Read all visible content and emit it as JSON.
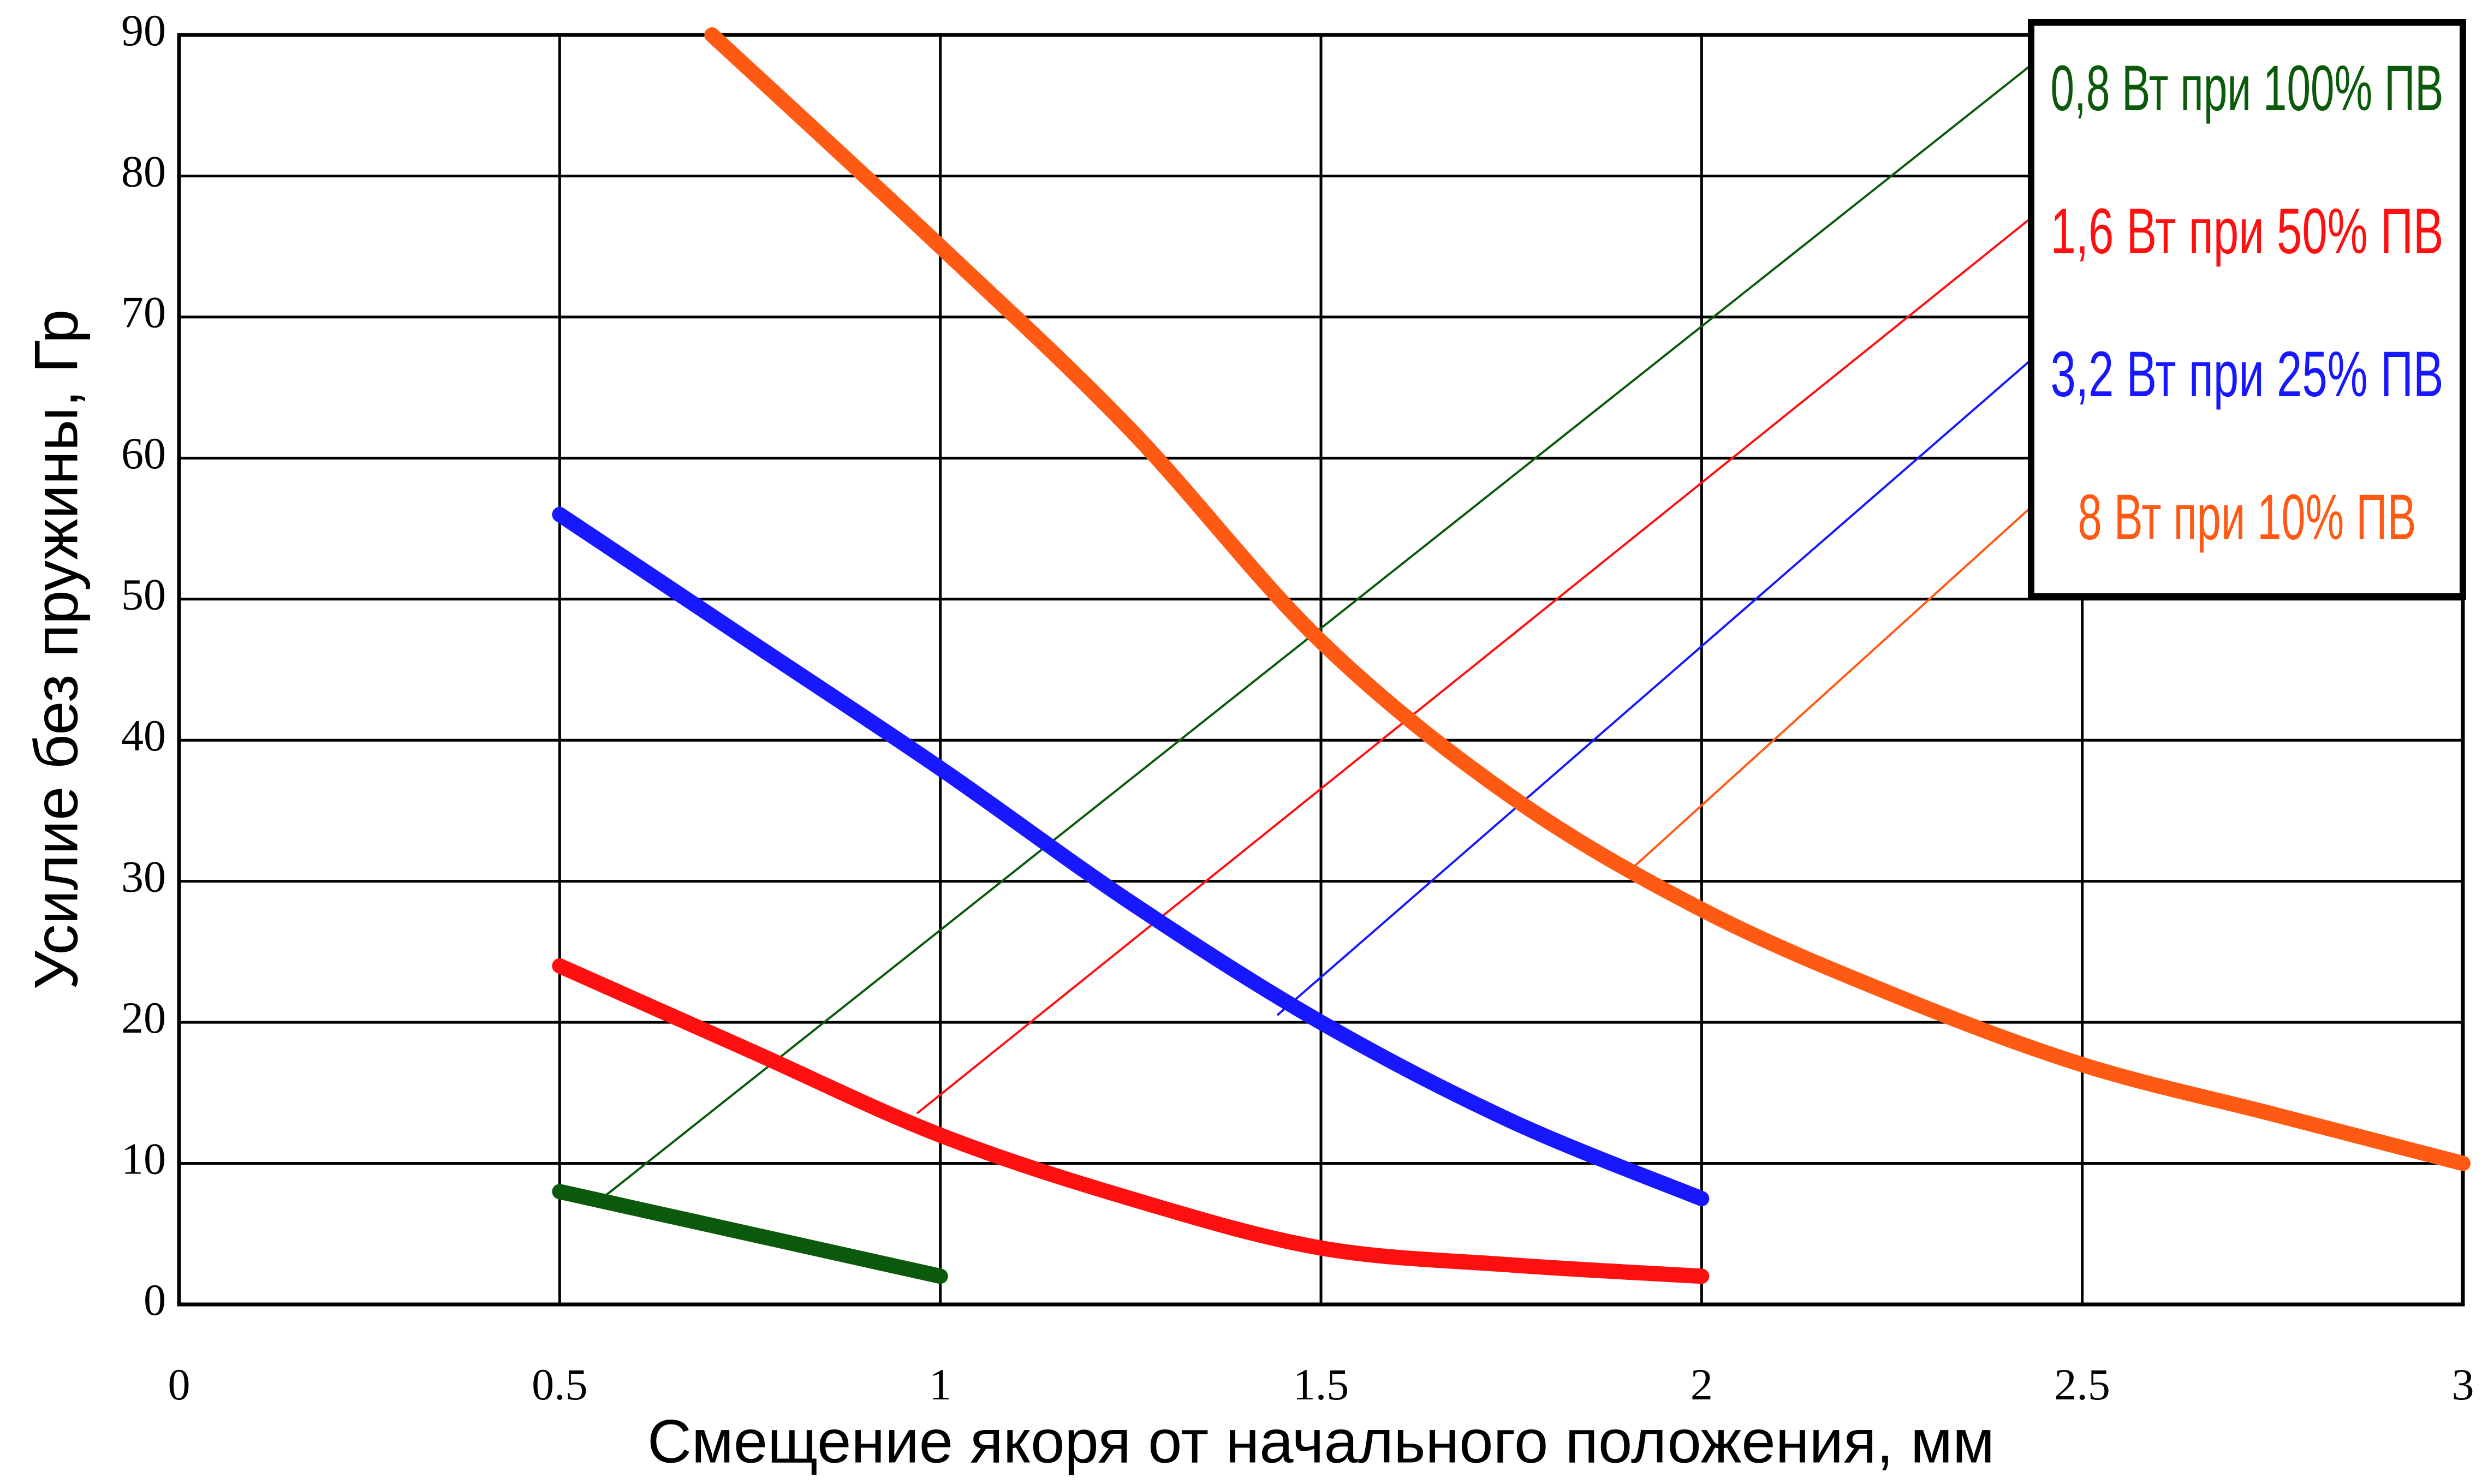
{
  "chart_data": {
    "type": "line",
    "x_label": "Смещение якоря от начального положения, мм",
    "y_label": "Усилие без пружины, Гр",
    "xlim": [
      0,
      3
    ],
    "xticks": [
      0,
      0.5,
      1,
      1.5,
      2,
      2.5,
      3
    ],
    "ylim": [
      0,
      90
    ],
    "yticks": [
      0,
      10,
      20,
      30,
      40,
      50,
      60,
      70,
      80,
      90
    ],
    "grid": true,
    "legend": "top-right",
    "series": [
      {
        "name": "0,8 Вт при 100% ПВ",
        "color": "#0b5a0b",
        "x": [
          0.5,
          1
        ],
        "values": [
          8,
          2
        ]
      },
      {
        "name": "1,6 Вт при 50% ПВ",
        "color": "#ff1010",
        "x": [
          0.5,
          0.75,
          1,
          1.25,
          1.5,
          1.75,
          2
        ],
        "values": [
          24,
          18,
          12,
          7.5,
          4,
          2.8,
          2
        ]
      },
      {
        "name": "3,2 Вт при 25% ПВ",
        "color": "#1818ff",
        "x": [
          0.5,
          0.75,
          1,
          1.25,
          1.5,
          1.75,
          2
        ],
        "values": [
          56,
          47,
          38,
          28.5,
          20,
          13,
          7.5
        ]
      },
      {
        "name": "8 Вт при 10% ПВ",
        "color": "#ff5a14",
        "x": [
          0.7,
          1,
          1.25,
          1.5,
          1.75,
          2,
          2.25,
          2.5,
          2.75,
          3
        ],
        "values": [
          90,
          75,
          62,
          47,
          36,
          28,
          22,
          17,
          13.5,
          10
        ]
      }
    ]
  }
}
